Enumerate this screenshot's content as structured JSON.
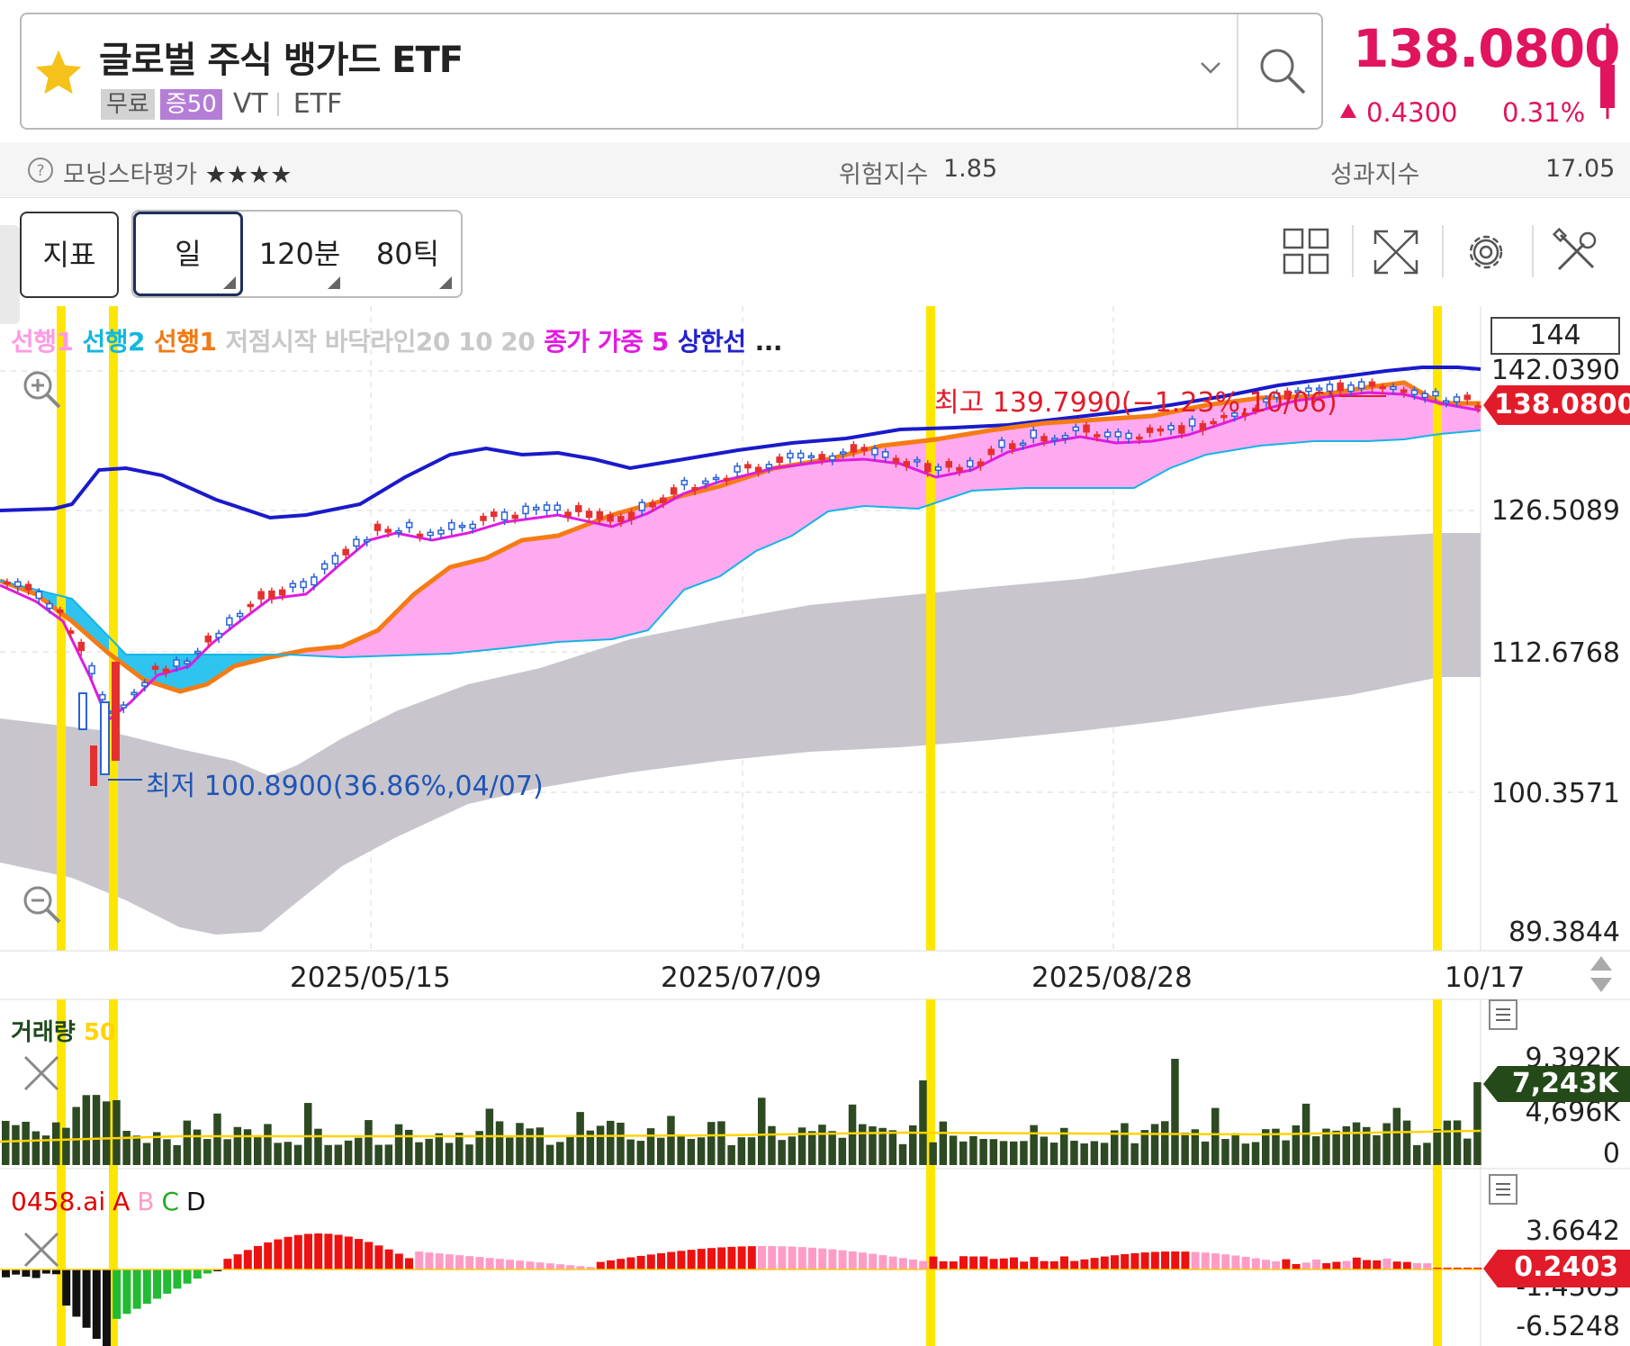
{
  "header": {
    "title": "글로벌 주식 뱅가드 ETF",
    "badge_free": "무료",
    "badge_margin": "증50",
    "ticker": "VT",
    "asset_type": "ETF",
    "price": "138.0800",
    "change_abs": "0.4300",
    "change_pct": "0.31%",
    "change_direction": "up",
    "accent_color": "#e0145f",
    "icons": [
      "star-icon",
      "chevron-down-icon",
      "search-icon"
    ]
  },
  "rating": {
    "morningstar_label": "모닝스타평가",
    "stars": "★★★★",
    "risk_label": "위험지수",
    "risk_value": "1.85",
    "perf_label": "성과지수",
    "perf_value": "17.05"
  },
  "toolbar": {
    "indicator_label": "지표",
    "periods": [
      "일",
      "120분",
      "80틱"
    ],
    "selected_period": "일",
    "icons": [
      "grid-layout-icon",
      "expand-icon",
      "gear-icon",
      "tools-icon"
    ]
  },
  "main_chart": {
    "legend": [
      {
        "text": "선행1",
        "color": "#ff9be3"
      },
      {
        "text": "선행2",
        "color": "#11b7dd"
      },
      {
        "text": "선행1",
        "color": "#f07a14"
      },
      {
        "text": "저점시작 바닥라인20 10 20",
        "color": "#c8c8c8"
      },
      {
        "text": "종가 가중 5",
        "color": "#e11be0"
      },
      {
        "text": "상한선",
        "color": "#2222cc"
      },
      {
        "text": "...",
        "color": "#222222"
      }
    ],
    "y_ticks": [
      "144",
      "142.0390",
      "126.5089",
      "112.6768",
      "100.3571",
      "89.3844"
    ],
    "last_price_tag": "138.0800",
    "high_annotation": "최고 139.7990(−1.23%,10/06)",
    "low_annotation": "최저 100.8900(36.86%,04/07)",
    "x_ticks": [
      "2025/05/15",
      "2025/07/09",
      "2025/08/28",
      "10/17"
    ]
  },
  "volume_chart": {
    "legend_label": "거래량",
    "legend_ma": "50",
    "y_ticks": [
      "9,392K",
      "4,696K",
      "0"
    ],
    "last_tag": "7,243K"
  },
  "ai_chart": {
    "legend": [
      {
        "text": "0458.ai",
        "color": "#e00000"
      },
      {
        "text": "A",
        "color": "#e00000"
      },
      {
        "text": "B",
        "color": "#ff9cc6"
      },
      {
        "text": "C",
        "color": "#22aa22"
      },
      {
        "text": "D",
        "color": "#111111"
      }
    ],
    "y_ticks": [
      "3.6642",
      "-1.4303",
      "-6.5248"
    ],
    "last_tag": "0.2403"
  },
  "chart_data": {
    "type": "candlestick",
    "title": "",
    "xlabel": "",
    "ylabel": "",
    "ylim": [
      89.3844,
      144
    ],
    "x_ticks": [
      "2025/05/15",
      "2025/07/09",
      "2025/08/28",
      "10/17"
    ],
    "last_close": 138.08,
    "high": {
      "value": 139.799,
      "date": "10/06"
    },
    "low": {
      "value": 100.89,
      "date": "04/07"
    },
    "colors": {
      "up": "#e53030",
      "down": "#2b62d6",
      "highlight": "#ffe600"
    }
  }
}
